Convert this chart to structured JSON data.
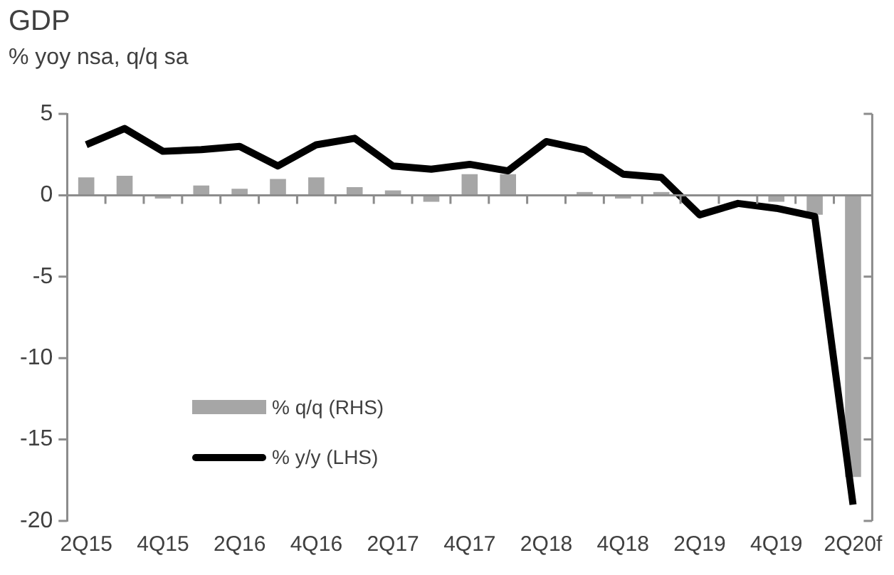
{
  "chart_data": {
    "type": "bar",
    "title": "GDP",
    "subtitle": "% yoy nsa, q/q sa",
    "categories": [
      "2Q15",
      null,
      "4Q15",
      null,
      "2Q16",
      null,
      "4Q16",
      null,
      "2Q17",
      null,
      "4Q17",
      null,
      "2Q18",
      null,
      "4Q18",
      null,
      "2Q19",
      null,
      "4Q19",
      null,
      "2Q20f"
    ],
    "series": [
      {
        "name": "% q/q (RHS)",
        "color": "#a6a6a6",
        "values": [
          1.1,
          1.2,
          -0.2,
          0.6,
          0.4,
          1.0,
          1.1,
          0.5,
          0.3,
          -0.4,
          1.3,
          1.3,
          0.0,
          0.2,
          -0.2,
          0.2,
          null,
          null,
          -0.4,
          -1.2,
          -17.3
        ]
      },
      {
        "name": "% y/y (LHS)",
        "type": "line",
        "color": "#000000",
        "values": [
          3.1,
          4.1,
          2.7,
          2.8,
          3.0,
          1.8,
          3.1,
          3.5,
          1.8,
          1.6,
          1.9,
          1.5,
          3.3,
          2.8,
          1.3,
          1.1,
          -1.2,
          -0.5,
          -0.8,
          -1.3,
          -19.0
        ]
      }
    ],
    "ylim": [
      -20,
      5
    ],
    "yticks": [
      -20,
      -15,
      -10,
      -5,
      0,
      5
    ],
    "legend": "bottom left",
    "marker": "none",
    "line_style": "solid"
  }
}
